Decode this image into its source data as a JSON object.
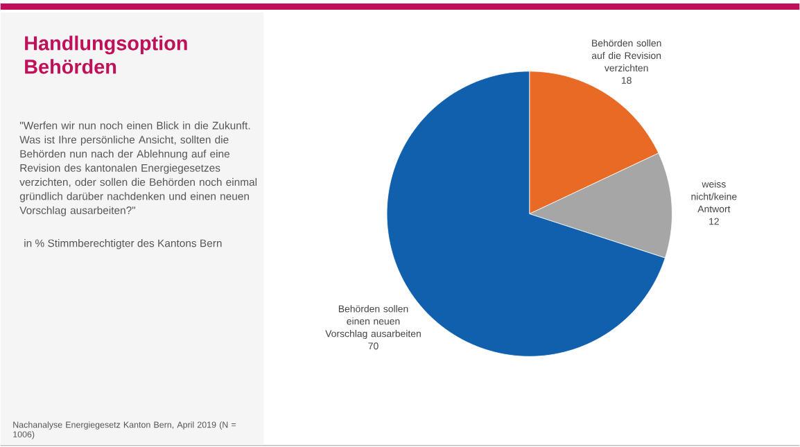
{
  "chart_data": {
    "type": "pie",
    "title": "Handlungsoption Behörden",
    "subtitle": "\"Werfen wir nun noch einen Blick in die Zukunft. Was ist Ihre persönliche Ansicht, sollten die Behörden nun nach der Ablehnung auf eine Revision des kantonalen Energiegesetzes verzichten, oder sollen die Behörden noch einmal gründlich darüber nachdenken und einen neuen Vorschlag ausarbeiten?\"",
    "annotations": [
      "in % Stimmberechtigter des Kantons Bern",
      "Nachanalyse Energiegesetz Kanton Bern, April 2019 (N = 1006)"
    ],
    "categories": [
      "Behörden sollen auf die Revision verzichten",
      "weiss nicht/keine Antwort",
      "Behörden sollen einen neuen Vorschlag ausarbeiten"
    ],
    "values": [
      18,
      12,
      70
    ],
    "colors": [
      "#e86a24",
      "#a6a6a6",
      "#1060ae"
    ],
    "data_labels": true
  }
}
